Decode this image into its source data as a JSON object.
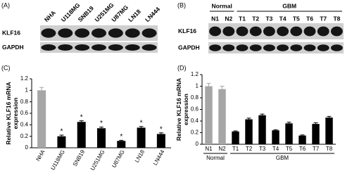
{
  "blot_a": {
    "panel_label": "(A)",
    "lanes": [
      "NHA",
      "U118MG",
      "SNB19",
      "U251MG",
      "U87MG",
      "LN18",
      "LN444"
    ],
    "rows": [
      "KLF16",
      "GAPDH"
    ]
  },
  "blot_b": {
    "panel_label": "(B)",
    "lanes": [
      "N1",
      "N2",
      "T1",
      "T2",
      "T3",
      "T4",
      "T5",
      "T6",
      "T7",
      "T8"
    ],
    "rows": [
      "KLF16",
      "GAPDH"
    ],
    "groups": [
      {
        "name": "Normal",
        "count": 2
      },
      {
        "name": "GBM",
        "count": 8
      }
    ]
  },
  "chart_data": [
    {
      "type": "bar",
      "title": "(C)",
      "ylabel": [
        "Relative KLF16 mRNA",
        "expression"
      ],
      "categories": [
        "NHA",
        "U118MG",
        "SNB19",
        "U251MG",
        "U87MG",
        "LN18",
        "LN444"
      ],
      "values": [
        1.0,
        0.2,
        0.45,
        0.34,
        0.12,
        0.35,
        0.24
      ],
      "errors": [
        0.05,
        0.02,
        0.02,
        0.02,
        0.01,
        0.02,
        0.02
      ],
      "colors": [
        "#a6a6a6",
        "#000000",
        "#000000",
        "#000000",
        "#000000",
        "#000000",
        "#000000"
      ],
      "significance": [
        null,
        "*",
        "*",
        "*",
        "*",
        "*",
        "*"
      ],
      "ylim": [
        0,
        1.2
      ],
      "yticks": [
        0,
        0.2,
        0.4,
        0.6,
        0.8,
        1,
        1.2
      ]
    },
    {
      "type": "bar",
      "title": "(D)",
      "ylabel": [
        "Relative KLF16 mRNA",
        "expression"
      ],
      "categories": [
        "N1",
        "N2",
        "T1",
        "T2",
        "T3",
        "T4",
        "T5",
        "T6",
        "T7",
        "T8"
      ],
      "values": [
        1.0,
        0.95,
        0.22,
        0.43,
        0.5,
        0.24,
        0.36,
        0.15,
        0.35,
        0.46
      ],
      "errors": [
        0.05,
        0.05,
        0.01,
        0.02,
        0.02,
        0.01,
        0.02,
        0.01,
        0.02,
        0.02
      ],
      "colors": [
        "#a6a6a6",
        "#a6a6a6",
        "#000000",
        "#000000",
        "#000000",
        "#000000",
        "#000000",
        "#000000",
        "#000000",
        "#000000"
      ],
      "groups": [
        {
          "name": "Normal",
          "count": 2
        },
        {
          "name": "GBM",
          "count": 8
        }
      ],
      "ylim": [
        0,
        1.2
      ],
      "yticks": [
        0,
        0.2,
        0.4,
        0.6,
        0.8,
        1,
        1.2
      ]
    }
  ]
}
